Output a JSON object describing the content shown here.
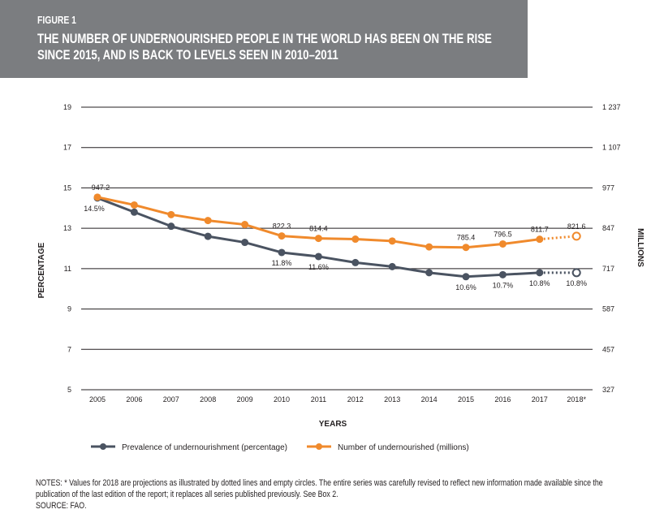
{
  "figure": {
    "label": "FIGURE 1",
    "title": "THE NUMBER OF UNDERNOURISHED PEOPLE IN THE WORLD HAS BEEN ON THE RISE SINCE 2015, AND IS BACK TO LEVELS SEEN IN 2010–2011"
  },
  "notes": {
    "line1": "NOTES: * Values for 2018 are projections as illustrated by dotted lines and empty circles. The entire series was carefully revised to reflect new information made available since the publication of the last edition of the report; it replaces all series published previously. See Box 2.",
    "source": "SOURCE: FAO."
  },
  "chart_data": {
    "type": "line",
    "xlabel": "YEARS",
    "ylabel_left": "PERCENTAGE",
    "ylabel_right": "MILLIONS",
    "categories": [
      "2005",
      "2006",
      "2007",
      "2008",
      "2009",
      "2010",
      "2011",
      "2012",
      "2013",
      "2014",
      "2015",
      "2016",
      "2017",
      "2018*"
    ],
    "y_left": {
      "range": [
        5,
        19
      ],
      "ticks": [
        "5",
        "7",
        "9",
        "11",
        "13",
        "15",
        "17",
        "19"
      ]
    },
    "y_right": {
      "range": [
        327,
        1237
      ],
      "ticks": [
        "327",
        "457",
        "587",
        "717",
        "847",
        "977",
        "1 107",
        "1 237"
      ]
    },
    "grid": true,
    "legend_position": "bottom",
    "series": [
      {
        "name": "Prevalence of undernourishment (percentage)",
        "axis": "left",
        "color": "#4a5361",
        "values": [
          14.5,
          13.8,
          13.1,
          12.6,
          12.3,
          11.8,
          11.6,
          11.3,
          11.1,
          10.8,
          10.6,
          10.7,
          10.8,
          10.8
        ],
        "labels": {
          "0": "14.5%",
          "5": "11.8%",
          "6": "11.6%",
          "10": "10.6%",
          "11": "10.7%",
          "12": "10.8%",
          "13": "10.8%"
        }
      },
      {
        "name": "Number of undernourished (millions)",
        "axis": "right",
        "color": "#f08a2c",
        "values": [
          947.2,
          922.0,
          891.0,
          872.0,
          859.0,
          822.3,
          814.4,
          812.0,
          806.0,
          787.0,
          785.4,
          796.5,
          811.7,
          821.6
        ],
        "labels": {
          "0": "947.2",
          "5": "822.3",
          "6": "814.4",
          "10": "785.4",
          "11": "796.5",
          "12": "811.7",
          "13": "821.6"
        }
      }
    ],
    "projection_index": 13
  }
}
